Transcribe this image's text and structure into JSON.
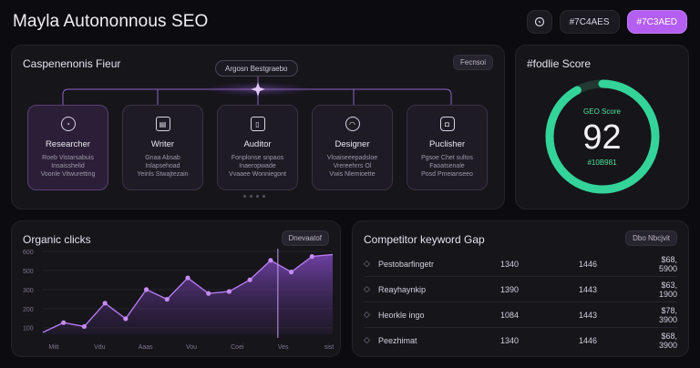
{
  "header": {
    "title": "Mayla Autononnous SEO",
    "pill_neutral": "#7C4AES",
    "pill_accent": "#7C3AED"
  },
  "pipeline": {
    "title": "Caspenenonis Fieur",
    "chip": "Fecnsoi",
    "orchestrator": "Argosn Bestgraebo",
    "agents": [
      {
        "name": "Researcher",
        "icon": "chat-bubble-icon",
        "desc": "Roeb Vistarsabuis\nInsaisshelid\nVoonle Vitwuretting"
      },
      {
        "name": "Writer",
        "icon": "document-icon",
        "desc": "Gnaa Absab\nInlapsehoad\nYeinls Stwajtezain"
      },
      {
        "name": "Auditor",
        "icon": "clipboard-icon",
        "desc": "Fonplonse snpaos\nInaeropwade\nVvaaee Wonniegont"
      },
      {
        "name": "Designer",
        "icon": "palette-icon",
        "desc": "Vloaiseeepadsloe\nVrereehrrs Ol\nVwis Nlemioette"
      },
      {
        "name": "Puclisher",
        "icon": "send-icon",
        "desc": "Pgsoe Chet sultos\nFaoatsenale\nPosd Pmeianseeo"
      }
    ]
  },
  "score": {
    "title": "#fodlie Score",
    "label": "GEO Score",
    "value": "92",
    "hex": "#10B981",
    "progress": 0.92,
    "color": "#34d399"
  },
  "clicks": {
    "title": "Organic clicks",
    "chip": "Dnevaatof",
    "chart_data": {
      "type": "area",
      "y_ticks": [
        "600",
        "500",
        "300",
        "200",
        "100"
      ],
      "x_ticks": [
        "Mitt",
        "Vdu",
        "Aaas",
        "Vou",
        "Coei",
        "Ves",
        "sist"
      ],
      "values": [
        5,
        30,
        20,
        80,
        40,
        115,
        90,
        145,
        105,
        110,
        140,
        190,
        160,
        200,
        205
      ],
      "ylim": [
        0,
        220
      ]
    }
  },
  "competitor": {
    "title": "Competitor keyword Gap",
    "chip": "Dbo Nbcjvit",
    "rows": [
      {
        "keyword": "Pestobarfingetr",
        "a": "1340",
        "b": "1446",
        "c": "$68, 5900"
      },
      {
        "keyword": "Reayhaynkip",
        "a": "1390",
        "b": "1443",
        "c": "$63, 1900"
      },
      {
        "keyword": "Heorkle ingo",
        "a": "1084",
        "b": "1443",
        "c": "$78, 3900"
      },
      {
        "keyword": "Peezhimat",
        "a": "1340",
        "b": "1446",
        "c": "$68, 3900"
      }
    ]
  }
}
